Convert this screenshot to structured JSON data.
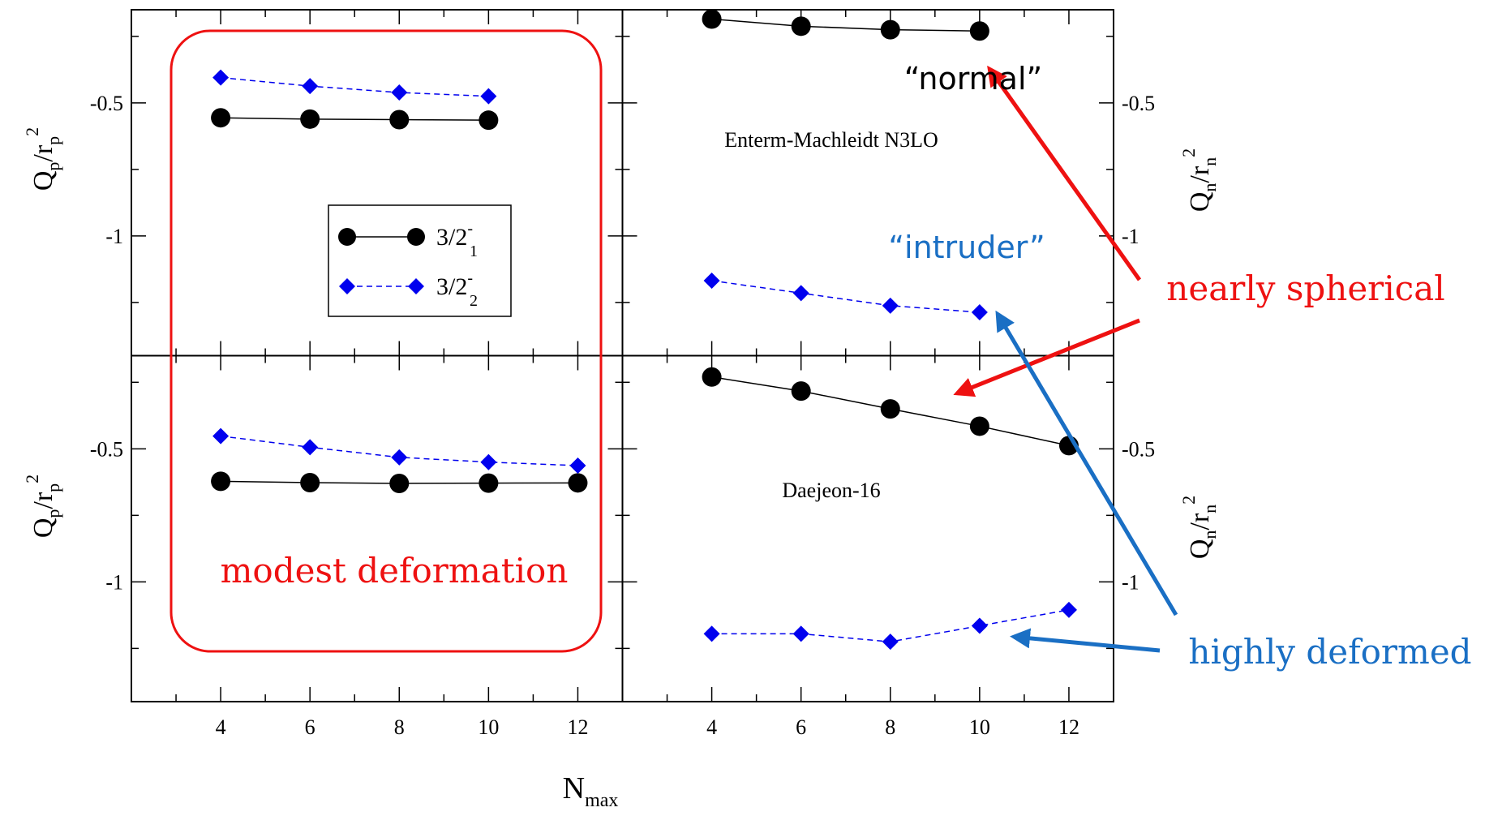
{
  "colors": {
    "red": "#ee1111",
    "blue": "#1a6fc4",
    "series_blue": "#0000ee",
    "black": "#000000"
  },
  "axis_labels": {
    "x": "N",
    "x_sub": "max",
    "y_left": {
      "base": "Q",
      "sub1": "p",
      "mid": "/r",
      "sub2": "p",
      "sup": "2"
    },
    "y_right": {
      "base": "Q",
      "sub1": "n",
      "mid": "/r",
      "sub2": "n",
      "sup": "2"
    }
  },
  "legend": {
    "series1": {
      "base": "3/2",
      "sup": "-",
      "sub": "1"
    },
    "series2": {
      "base": "3/2",
      "sup": "-",
      "sub": "2"
    }
  },
  "annotations": {
    "normal": "“normal”",
    "intruder": "“intruder”",
    "nearly_spherical": "nearly spherical",
    "highly_deformed": "highly deformed",
    "modest_deformation": "modest deformation"
  },
  "panel_titles": {
    "top_right": "Enterm-Machleidt N3LO",
    "bottom_right": "Daejeon-16"
  },
  "chart_data": [
    {
      "type": "line",
      "panel": "top-left",
      "quantity": "Q_p/r_p^2",
      "x": [
        4,
        6,
        8,
        10
      ],
      "series": [
        {
          "name": "3/2-_1",
          "values": [
            -0.556,
            -0.561,
            -0.563,
            -0.565
          ]
        },
        {
          "name": "3/2-_2",
          "values": [
            -0.405,
            -0.437,
            -0.461,
            -0.475
          ]
        }
      ],
      "xlim": [
        2,
        13
      ],
      "ylim": [
        -1.45,
        -0.15
      ],
      "yticks": [
        -0.5,
        -1
      ]
    },
    {
      "type": "line",
      "panel": "top-right",
      "quantity": "Q_n/r_n^2",
      "x": [
        4,
        6,
        8,
        10
      ],
      "series": [
        {
          "name": "3/2-_1",
          "values": [
            -0.185,
            -0.212,
            -0.225,
            -0.23
          ]
        },
        {
          "name": "3/2-_2",
          "values": [
            -1.168,
            -1.215,
            -1.262,
            -1.287
          ]
        }
      ],
      "xlim": [
        2,
        13
      ],
      "ylim": [
        -1.45,
        -0.15
      ],
      "yticks": [
        -0.5,
        -1
      ]
    },
    {
      "type": "line",
      "panel": "bottom-left",
      "quantity": "Q_p/r_p^2",
      "x": [
        4,
        6,
        8,
        10,
        12
      ],
      "series": [
        {
          "name": "3/2-_1",
          "values": [
            -0.622,
            -0.627,
            -0.63,
            -0.629,
            -0.628
          ]
        },
        {
          "name": "3/2-_2",
          "values": [
            -0.452,
            -0.494,
            -0.532,
            -0.55,
            -0.563
          ]
        }
      ],
      "xlim": [
        2,
        13
      ],
      "ylim": [
        -1.45,
        -0.15
      ],
      "yticks": [
        -0.5,
        -1
      ]
    },
    {
      "type": "line",
      "panel": "bottom-right",
      "quantity": "Q_n/r_n^2",
      "x": [
        4,
        6,
        8,
        10,
        12
      ],
      "series": [
        {
          "name": "3/2-_1",
          "values": [
            -0.23,
            -0.283,
            -0.35,
            -0.415,
            -0.488
          ]
        },
        {
          "name": "3/2-_2",
          "values": [
            -1.195,
            -1.195,
            -1.225,
            -1.165,
            -1.105
          ]
        }
      ],
      "xlim": [
        2,
        13
      ],
      "ylim": [
        -1.45,
        -0.15
      ],
      "yticks": [
        -0.5,
        -1
      ]
    }
  ]
}
